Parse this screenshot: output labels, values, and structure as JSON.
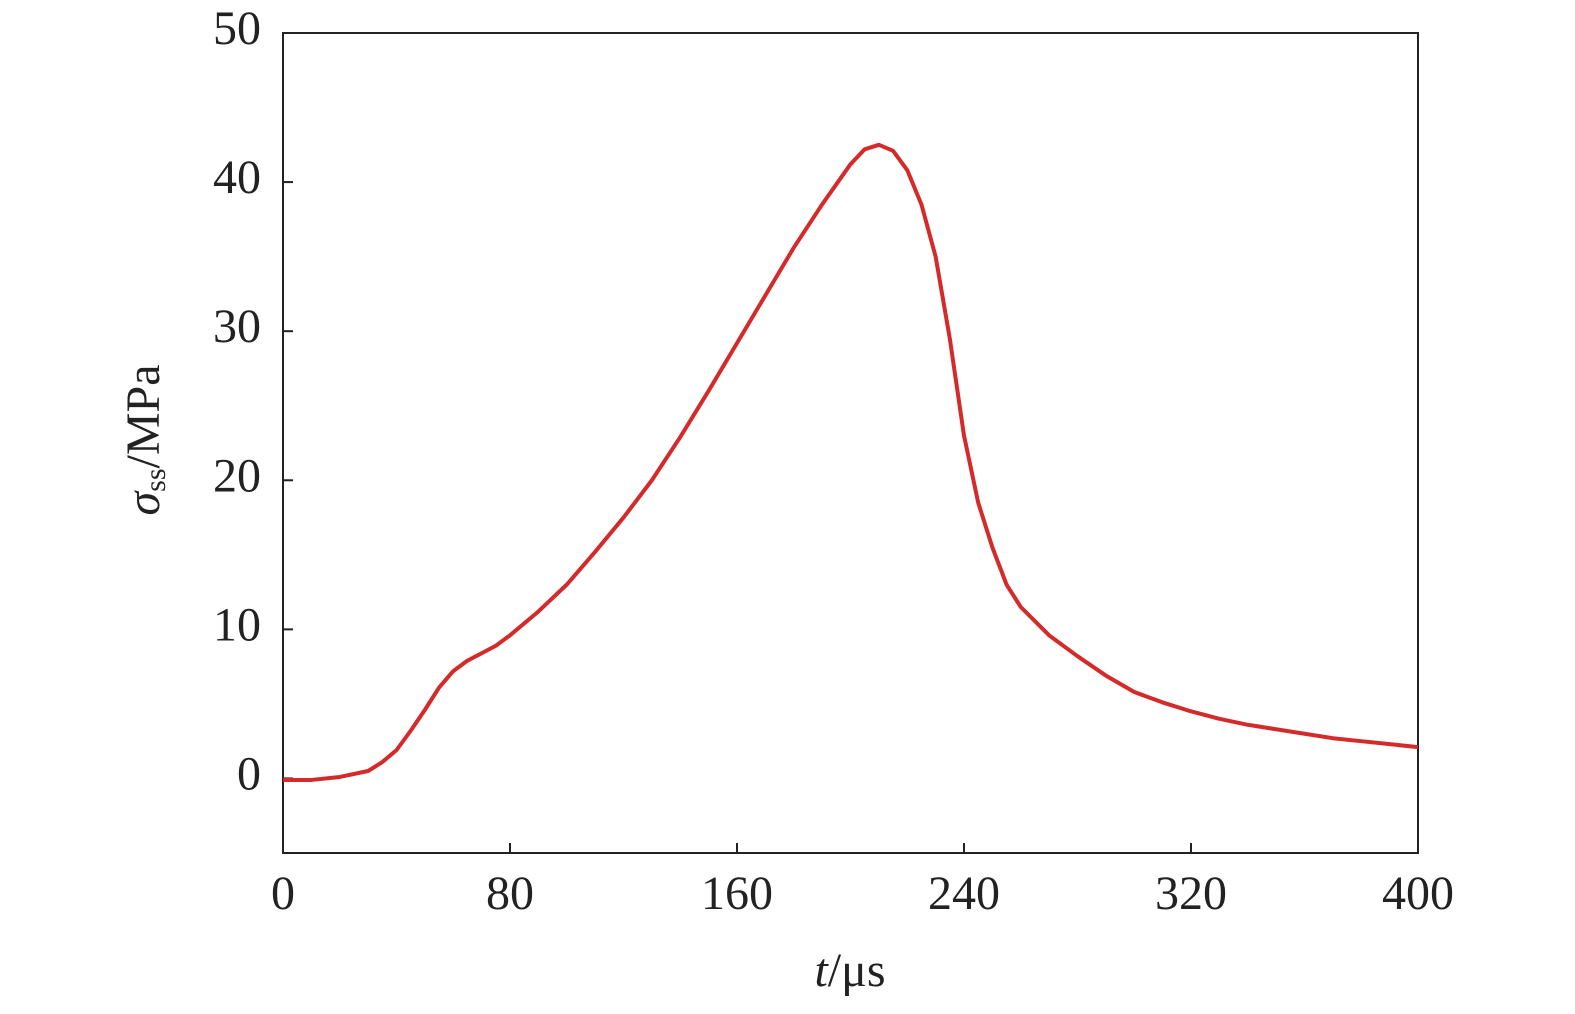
{
  "chart_data": {
    "type": "line",
    "xlabel": {
      "symbol": "t",
      "unit": "/μs"
    },
    "ylabel": {
      "symbol": "σ",
      "subscript": "ss",
      "unit": "/MPa"
    },
    "x": [
      0,
      10,
      20,
      30,
      35,
      40,
      45,
      50,
      55,
      60,
      65,
      70,
      75,
      80,
      90,
      100,
      110,
      120,
      130,
      140,
      150,
      160,
      170,
      180,
      190,
      200,
      205,
      210,
      215,
      220,
      225,
      230,
      235,
      240,
      245,
      250,
      255,
      260,
      270,
      280,
      290,
      300,
      310,
      320,
      330,
      340,
      350,
      360,
      370,
      380,
      390,
      400
    ],
    "series": [
      {
        "color": "#d42a2a",
        "values": [
          -0.1,
          -0.1,
          0.1,
          0.5,
          1.1,
          1.9,
          3.2,
          4.6,
          6.1,
          7.2,
          7.9,
          8.4,
          8.9,
          9.6,
          11.2,
          13,
          15.2,
          17.5,
          20,
          22.9,
          26,
          29.2,
          32.4,
          35.6,
          38.5,
          41.2,
          42.2,
          42.5,
          42.1,
          40.8,
          38.5,
          35,
          29.5,
          23,
          18.5,
          15.5,
          13,
          11.5,
          9.6,
          8.2,
          6.9,
          5.8,
          5.1,
          4.5,
          4,
          3.6,
          3.3,
          3,
          2.7,
          2.5,
          2.3,
          2.1
        ]
      }
    ],
    "xlim": [
      0,
      400
    ],
    "xticks": [
      0,
      80,
      160,
      240,
      320,
      400
    ],
    "ylim": [
      -5,
      50
    ],
    "yticks": [
      0,
      10,
      20,
      30,
      40,
      50
    ]
  }
}
